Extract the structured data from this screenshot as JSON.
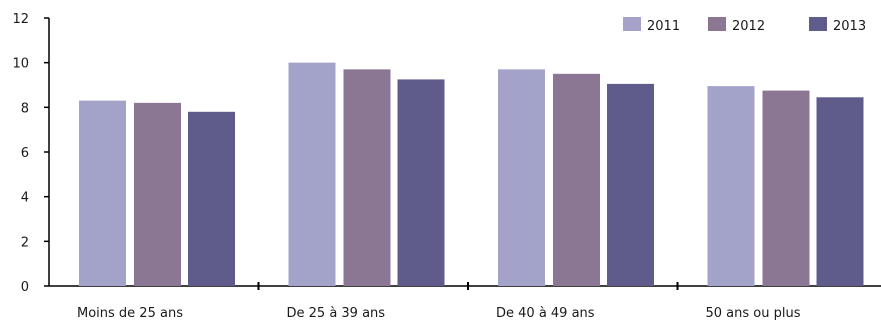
{
  "chart_data": {
    "type": "bar",
    "categories": [
      "Moins de 25 ans",
      "De 25 à 39 ans",
      "De 40 à 49 ans",
      "50 ans ou plus"
    ],
    "series": [
      {
        "name": "2011",
        "values": [
          8.3,
          10.0,
          9.7,
          8.95
        ],
        "color": "#a3a3c9"
      },
      {
        "name": "2012",
        "values": [
          8.2,
          9.7,
          9.5,
          8.75
        ],
        "color": "#8b7694"
      },
      {
        "name": "2013",
        "values": [
          7.8,
          9.25,
          9.05,
          8.45
        ],
        "color": "#5f5c8c"
      }
    ],
    "title": "",
    "xlabel": "",
    "ylabel": "",
    "ylim": [
      0,
      12
    ],
    "yticks": [
      0,
      2,
      4,
      6,
      8,
      10,
      12
    ],
    "grid": false,
    "legend_position": "top-right"
  }
}
